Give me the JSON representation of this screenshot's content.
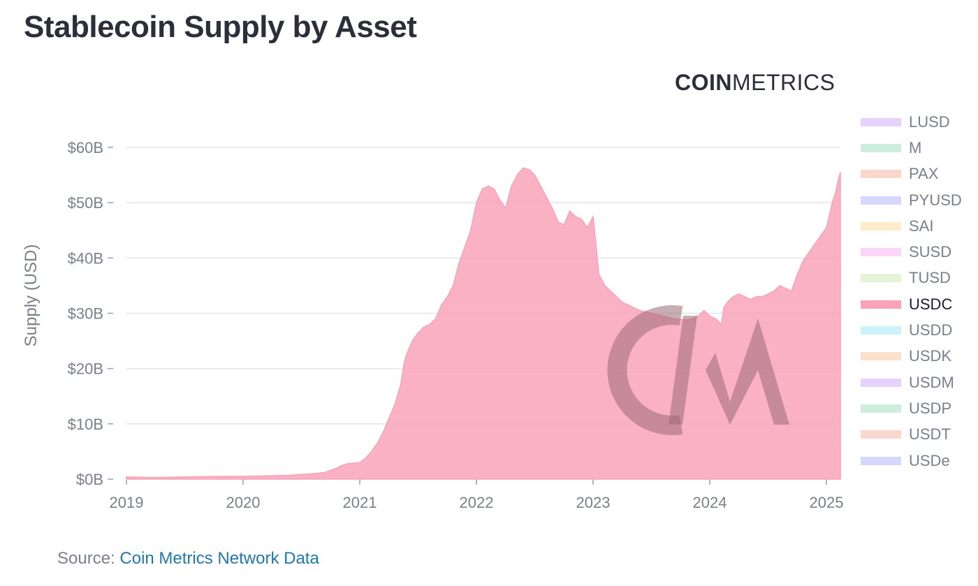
{
  "title": "Stablecoin Supply by Asset",
  "brand": {
    "bold": "COIN",
    "light": "METRICS"
  },
  "source": {
    "label": "Source: ",
    "link": "Coin Metrics Network Data"
  },
  "legend": [
    {
      "label": "LUSD",
      "color": "#e6d2fb",
      "active": false
    },
    {
      "label": "M",
      "color": "#cdeedd",
      "active": false
    },
    {
      "label": "PAX",
      "color": "#fbd6cc",
      "active": false
    },
    {
      "label": "PYUSD",
      "color": "#d5d8fb",
      "active": false
    },
    {
      "label": "SAI",
      "color": "#fdecc8",
      "active": false
    },
    {
      "label": "SUSD",
      "color": "#fbd6f8",
      "active": false
    },
    {
      "label": "TUSD",
      "color": "#e3f3d6",
      "active": false
    },
    {
      "label": "USDC",
      "color": "#f9a3b9",
      "active": true
    },
    {
      "label": "USDD",
      "color": "#cdf2f8",
      "active": false
    },
    {
      "label": "USDK",
      "color": "#fde0cc",
      "active": false
    },
    {
      "label": "USDM",
      "color": "#e6d2fb",
      "active": false
    },
    {
      "label": "USDP",
      "color": "#cdeedd",
      "active": false
    },
    {
      "label": "USDT",
      "color": "#fbd6cc",
      "active": false
    },
    {
      "label": "USDe",
      "color": "#d5d8fb",
      "active": false
    }
  ],
  "chart_data": {
    "type": "area",
    "title": "Stablecoin Supply by Asset",
    "xlabel": "",
    "ylabel": "Supply (USD)",
    "y_tick_labels": [
      "$0B",
      "$10B",
      "$20B",
      "$30B",
      "$40B",
      "$50B",
      "$60B"
    ],
    "y_ticks": [
      0,
      10,
      20,
      30,
      40,
      50,
      60
    ],
    "x_tick_labels": [
      "2019",
      "2020",
      "2021",
      "2022",
      "2023",
      "2024",
      "2025"
    ],
    "x_ticks": [
      2019,
      2020,
      2021,
      2022,
      2023,
      2024,
      2025
    ],
    "xlim": [
      2019.0,
      2025.12
    ],
    "ylim": [
      0,
      60
    ],
    "grid": true,
    "legend_position": "right",
    "series": [
      {
        "name": "USDC",
        "color": "#f9a3b9",
        "unit": "USD billions",
        "x": [
          2019.0,
          2019.2,
          2019.5,
          2019.8,
          2020.0,
          2020.2,
          2020.4,
          2020.6,
          2020.7,
          2020.8,
          2020.85,
          2020.9,
          2020.95,
          2021.0,
          2021.05,
          2021.1,
          2021.15,
          2021.2,
          2021.25,
          2021.3,
          2021.35,
          2021.38,
          2021.4,
          2021.45,
          2021.5,
          2021.55,
          2021.6,
          2021.65,
          2021.7,
          2021.75,
          2021.8,
          2021.85,
          2021.9,
          2021.95,
          2022.0,
          2022.05,
          2022.1,
          2022.15,
          2022.2,
          2022.25,
          2022.3,
          2022.35,
          2022.4,
          2022.45,
          2022.5,
          2022.55,
          2022.6,
          2022.65,
          2022.7,
          2022.75,
          2022.8,
          2022.85,
          2022.9,
          2022.95,
          2023.0,
          2023.05,
          2023.1,
          2023.15,
          2023.2,
          2023.25,
          2023.3,
          2023.4,
          2023.5,
          2023.6,
          2023.7,
          2023.8,
          2023.85,
          2023.9,
          2023.95,
          2024.0,
          2024.05,
          2024.1,
          2024.12,
          2024.15,
          2024.2,
          2024.25,
          2024.3,
          2024.35,
          2024.4,
          2024.45,
          2024.5,
          2024.55,
          2024.6,
          2024.65,
          2024.7,
          2024.75,
          2024.8,
          2024.85,
          2024.9,
          2024.95,
          2025.0,
          2025.05,
          2025.08,
          2025.1,
          2025.12
        ],
        "y": [
          0.4,
          0.3,
          0.4,
          0.5,
          0.5,
          0.6,
          0.7,
          1.0,
          1.2,
          2.0,
          2.5,
          2.8,
          2.9,
          3.0,
          3.8,
          5.0,
          6.5,
          8.5,
          11.0,
          13.5,
          17.0,
          21.0,
          22.5,
          25.0,
          26.5,
          27.5,
          28.0,
          29.0,
          31.5,
          33.0,
          35.0,
          39.0,
          42.0,
          45.0,
          50.0,
          52.5,
          53.0,
          52.5,
          50.5,
          49.0,
          53.0,
          55.0,
          56.3,
          56.0,
          55.0,
          53.0,
          51.0,
          49.0,
          46.5,
          46.0,
          48.5,
          47.5,
          47.0,
          45.5,
          47.5,
          37.0,
          35.0,
          34.0,
          33.0,
          32.0,
          31.5,
          30.5,
          30.0,
          29.5,
          29.0,
          28.8,
          29.0,
          29.5,
          30.5,
          29.5,
          29.0,
          28.0,
          31.0,
          32.0,
          33.0,
          33.5,
          33.0,
          32.5,
          33.0,
          33.0,
          33.5,
          34.0,
          35.0,
          34.5,
          34.0,
          37.0,
          39.5,
          41.0,
          42.5,
          44.0,
          45.5,
          50.0,
          52.0,
          54.0,
          55.5
        ]
      }
    ]
  }
}
